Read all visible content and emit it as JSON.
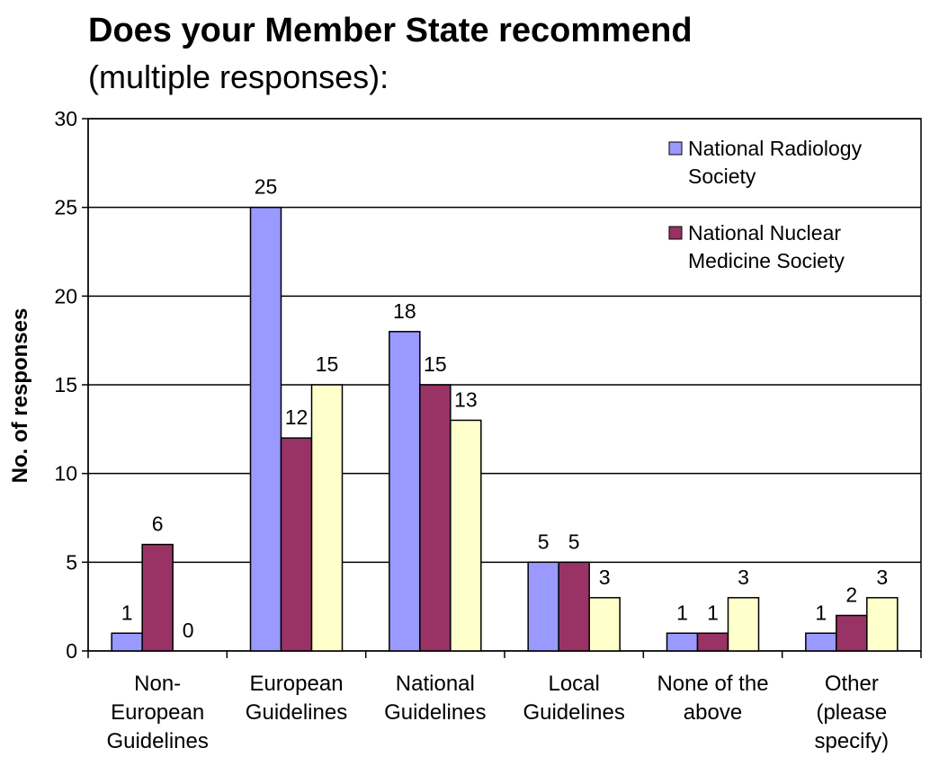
{
  "chart_data": {
    "type": "bar",
    "title": "Does your Member State recommend",
    "subtitle": "(multiple responses):",
    "ylabel": "No. of responses",
    "xlabel": "",
    "ylim": [
      0,
      30
    ],
    "yticks": [
      0,
      5,
      10,
      15,
      20,
      25,
      30
    ],
    "grid": true,
    "legend_position": "top-right",
    "categories": [
      [
        "Non-",
        "European",
        "Guidelines"
      ],
      [
        "European",
        "Guidelines"
      ],
      [
        "National",
        "Guidelines"
      ],
      [
        "Local",
        "Guidelines"
      ],
      [
        "None of the",
        "above"
      ],
      [
        "Other",
        "(please",
        "specify)"
      ]
    ],
    "series": [
      {
        "name": "National Radiology Society",
        "legend_lines": [
          "National Radiology",
          "Society"
        ],
        "color": "#9999ff",
        "values": [
          1,
          25,
          18,
          5,
          1,
          1
        ]
      },
      {
        "name": "National Nuclear Medicine Society",
        "legend_lines": [
          "National Nuclear",
          "Medicine Society"
        ],
        "color": "#993366",
        "values": [
          6,
          12,
          15,
          5,
          1,
          2
        ]
      },
      {
        "values": [
          0,
          15,
          13,
          3,
          3,
          3
        ],
        "color": "#ffffcc"
      }
    ]
  }
}
